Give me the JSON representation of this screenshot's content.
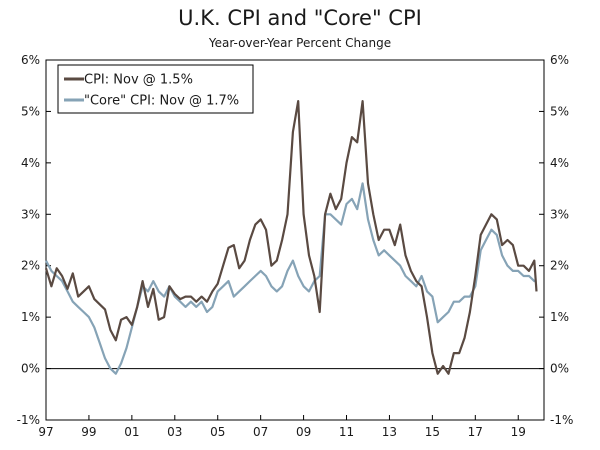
{
  "chart_data": {
    "type": "line",
    "title": "U.K. CPI and \"Core\" CPI",
    "subtitle": "Year-over-Year Percent Change",
    "xlabel": "",
    "ylabel": "",
    "xlim": [
      1997.0,
      2020.2
    ],
    "ylim": [
      -1,
      6
    ],
    "x_ticks": [
      {
        "value": 1997,
        "label": "97"
      },
      {
        "value": 1999,
        "label": "99"
      },
      {
        "value": 2001,
        "label": "01"
      },
      {
        "value": 2003,
        "label": "03"
      },
      {
        "value": 2005,
        "label": "05"
      },
      {
        "value": 2007,
        "label": "07"
      },
      {
        "value": 2009,
        "label": "09"
      },
      {
        "value": 2011,
        "label": "11"
      },
      {
        "value": 2013,
        "label": "13"
      },
      {
        "value": 2015,
        "label": "15"
      },
      {
        "value": 2017,
        "label": "17"
      },
      {
        "value": 2019,
        "label": "19"
      }
    ],
    "y_ticks": [
      {
        "value": 6,
        "label": "6%"
      },
      {
        "value": 5,
        "label": "5%"
      },
      {
        "value": 4,
        "label": "4%"
      },
      {
        "value": 3,
        "label": "3%"
      },
      {
        "value": 2,
        "label": "2%"
      },
      {
        "value": 1,
        "label": "1%"
      },
      {
        "value": 0,
        "label": "0%"
      },
      {
        "value": -1,
        "label": "-1%"
      }
    ],
    "legend_position": "top-left",
    "series": [
      {
        "name": "CPI: Nov @ 1.5%",
        "color": "#5a4a42",
        "points": [
          [
            1997.0,
            1.95
          ],
          [
            1997.25,
            1.6
          ],
          [
            1997.5,
            1.95
          ],
          [
            1997.75,
            1.8
          ],
          [
            1998.0,
            1.55
          ],
          [
            1998.25,
            1.85
          ],
          [
            1998.5,
            1.4
          ],
          [
            1998.75,
            1.5
          ],
          [
            1999.0,
            1.6
          ],
          [
            1999.25,
            1.35
          ],
          [
            1999.5,
            1.25
          ],
          [
            1999.75,
            1.15
          ],
          [
            2000.0,
            0.75
          ],
          [
            2000.25,
            0.55
          ],
          [
            2000.5,
            0.95
          ],
          [
            2000.75,
            1.0
          ],
          [
            2001.0,
            0.85
          ],
          [
            2001.25,
            1.2
          ],
          [
            2001.5,
            1.7
          ],
          [
            2001.75,
            1.2
          ],
          [
            2002.0,
            1.55
          ],
          [
            2002.25,
            0.95
          ],
          [
            2002.5,
            1.0
          ],
          [
            2002.75,
            1.6
          ],
          [
            2003.0,
            1.45
          ],
          [
            2003.25,
            1.35
          ],
          [
            2003.5,
            1.4
          ],
          [
            2003.75,
            1.4
          ],
          [
            2004.0,
            1.3
          ],
          [
            2004.25,
            1.4
          ],
          [
            2004.5,
            1.3
          ],
          [
            2004.75,
            1.5
          ],
          [
            2005.0,
            1.65
          ],
          [
            2005.25,
            2.0
          ],
          [
            2005.5,
            2.35
          ],
          [
            2005.75,
            2.4
          ],
          [
            2006.0,
            1.95
          ],
          [
            2006.25,
            2.1
          ],
          [
            2006.5,
            2.5
          ],
          [
            2006.75,
            2.8
          ],
          [
            2007.0,
            2.9
          ],
          [
            2007.25,
            2.7
          ],
          [
            2007.5,
            2.0
          ],
          [
            2007.75,
            2.1
          ],
          [
            2008.0,
            2.5
          ],
          [
            2008.25,
            3.0
          ],
          [
            2008.5,
            4.6
          ],
          [
            2008.75,
            5.2
          ],
          [
            2009.0,
            3.0
          ],
          [
            2009.25,
            2.2
          ],
          [
            2009.5,
            1.8
          ],
          [
            2009.75,
            1.1
          ],
          [
            2010.0,
            3.0
          ],
          [
            2010.25,
            3.4
          ],
          [
            2010.5,
            3.1
          ],
          [
            2010.75,
            3.3
          ],
          [
            2011.0,
            4.0
          ],
          [
            2011.25,
            4.5
          ],
          [
            2011.5,
            4.4
          ],
          [
            2011.75,
            5.2
          ],
          [
            2012.0,
            3.6
          ],
          [
            2012.25,
            3.0
          ],
          [
            2012.5,
            2.5
          ],
          [
            2012.75,
            2.7
          ],
          [
            2013.0,
            2.7
          ],
          [
            2013.25,
            2.4
          ],
          [
            2013.5,
            2.8
          ],
          [
            2013.75,
            2.2
          ],
          [
            2014.0,
            1.9
          ],
          [
            2014.25,
            1.7
          ],
          [
            2014.5,
            1.6
          ],
          [
            2014.75,
            1.0
          ],
          [
            2015.0,
            0.3
          ],
          [
            2015.25,
            -0.1
          ],
          [
            2015.5,
            0.05
          ],
          [
            2015.75,
            -0.1
          ],
          [
            2016.0,
            0.3
          ],
          [
            2016.25,
            0.3
          ],
          [
            2016.5,
            0.6
          ],
          [
            2016.75,
            1.1
          ],
          [
            2017.0,
            1.8
          ],
          [
            2017.25,
            2.6
          ],
          [
            2017.5,
            2.8
          ],
          [
            2017.75,
            3.0
          ],
          [
            2018.0,
            2.9
          ],
          [
            2018.25,
            2.4
          ],
          [
            2018.5,
            2.5
          ],
          [
            2018.75,
            2.4
          ],
          [
            2019.0,
            2.0
          ],
          [
            2019.25,
            2.0
          ],
          [
            2019.5,
            1.9
          ],
          [
            2019.75,
            2.1
          ],
          [
            2019.85,
            1.5
          ]
        ]
      },
      {
        "name": "\"Core\" CPI: Nov @ 1.7%",
        "color": "#86a3b6",
        "points": [
          [
            1997.0,
            2.1
          ],
          [
            1997.25,
            1.9
          ],
          [
            1997.5,
            1.8
          ],
          [
            1997.75,
            1.7
          ],
          [
            1998.0,
            1.5
          ],
          [
            1998.25,
            1.3
          ],
          [
            1998.5,
            1.2
          ],
          [
            1998.75,
            1.1
          ],
          [
            1999.0,
            1.0
          ],
          [
            1999.25,
            0.8
          ],
          [
            1999.5,
            0.5
          ],
          [
            1999.75,
            0.2
          ],
          [
            2000.0,
            0.0
          ],
          [
            2000.25,
            -0.1
          ],
          [
            2000.5,
            0.1
          ],
          [
            2000.75,
            0.4
          ],
          [
            2001.0,
            0.8
          ],
          [
            2001.25,
            1.2
          ],
          [
            2001.5,
            1.6
          ],
          [
            2001.75,
            1.5
          ],
          [
            2002.0,
            1.7
          ],
          [
            2002.25,
            1.5
          ],
          [
            2002.5,
            1.4
          ],
          [
            2002.75,
            1.6
          ],
          [
            2003.0,
            1.4
          ],
          [
            2003.25,
            1.3
          ],
          [
            2003.5,
            1.2
          ],
          [
            2003.75,
            1.3
          ],
          [
            2004.0,
            1.2
          ],
          [
            2004.25,
            1.3
          ],
          [
            2004.5,
            1.1
          ],
          [
            2004.75,
            1.2
          ],
          [
            2005.0,
            1.5
          ],
          [
            2005.25,
            1.6
          ],
          [
            2005.5,
            1.7
          ],
          [
            2005.75,
            1.4
          ],
          [
            2006.0,
            1.5
          ],
          [
            2006.25,
            1.6
          ],
          [
            2006.5,
            1.7
          ],
          [
            2006.75,
            1.8
          ],
          [
            2007.0,
            1.9
          ],
          [
            2007.25,
            1.8
          ],
          [
            2007.5,
            1.6
          ],
          [
            2007.75,
            1.5
          ],
          [
            2008.0,
            1.6
          ],
          [
            2008.25,
            1.9
          ],
          [
            2008.5,
            2.1
          ],
          [
            2008.75,
            1.8
          ],
          [
            2009.0,
            1.6
          ],
          [
            2009.25,
            1.5
          ],
          [
            2009.5,
            1.7
          ],
          [
            2009.75,
            1.8
          ],
          [
            2010.0,
            3.0
          ],
          [
            2010.25,
            3.0
          ],
          [
            2010.5,
            2.9
          ],
          [
            2010.75,
            2.8
          ],
          [
            2011.0,
            3.2
          ],
          [
            2011.25,
            3.3
          ],
          [
            2011.5,
            3.1
          ],
          [
            2011.75,
            3.6
          ],
          [
            2012.0,
            2.9
          ],
          [
            2012.25,
            2.5
          ],
          [
            2012.5,
            2.2
          ],
          [
            2012.75,
            2.3
          ],
          [
            2013.0,
            2.2
          ],
          [
            2013.25,
            2.1
          ],
          [
            2013.5,
            2.0
          ],
          [
            2013.75,
            1.8
          ],
          [
            2014.0,
            1.7
          ],
          [
            2014.25,
            1.6
          ],
          [
            2014.5,
            1.8
          ],
          [
            2014.75,
            1.5
          ],
          [
            2015.0,
            1.4
          ],
          [
            2015.25,
            0.9
          ],
          [
            2015.5,
            1.0
          ],
          [
            2015.75,
            1.1
          ],
          [
            2016.0,
            1.3
          ],
          [
            2016.25,
            1.3
          ],
          [
            2016.5,
            1.4
          ],
          [
            2016.75,
            1.4
          ],
          [
            2017.0,
            1.6
          ],
          [
            2017.25,
            2.3
          ],
          [
            2017.5,
            2.5
          ],
          [
            2017.75,
            2.7
          ],
          [
            2018.0,
            2.6
          ],
          [
            2018.25,
            2.2
          ],
          [
            2018.5,
            2.0
          ],
          [
            2018.75,
            1.9
          ],
          [
            2019.0,
            1.9
          ],
          [
            2019.25,
            1.8
          ],
          [
            2019.5,
            1.8
          ],
          [
            2019.75,
            1.7
          ],
          [
            2019.85,
            1.7
          ]
        ]
      }
    ]
  }
}
